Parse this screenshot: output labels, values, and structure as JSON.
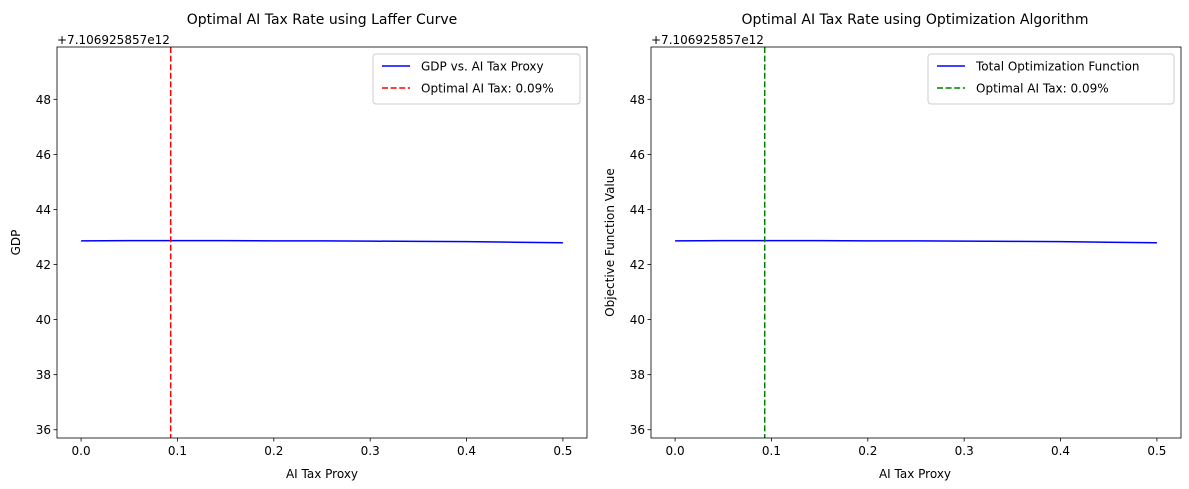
{
  "chart_data": [
    {
      "type": "line",
      "title": "Optimal AI Tax Rate using Laffer Curve",
      "xlabel": "AI Tax Proxy",
      "ylabel": "GDP",
      "y_offset_text": "+7.106925857e12",
      "xlim": [
        -0.025,
        0.525
      ],
      "ylim": [
        35.7,
        49.9
      ],
      "x_ticks": [
        0.0,
        0.1,
        0.2,
        0.3,
        0.4,
        0.5
      ],
      "x_tick_labels": [
        "0.0",
        "0.1",
        "0.2",
        "0.3",
        "0.4",
        "0.5"
      ],
      "y_ticks": [
        36,
        38,
        40,
        42,
        44,
        46,
        48
      ],
      "y_tick_labels": [
        "36",
        "38",
        "40",
        "42",
        "44",
        "46",
        "48"
      ],
      "grid": false,
      "legend_position": "top-right",
      "series": [
        {
          "name": "GDP vs. AI Tax Proxy",
          "color": "#0000ff",
          "style": "solid",
          "x": [
            0.0,
            0.05,
            0.1,
            0.15,
            0.2,
            0.25,
            0.3,
            0.35,
            0.4,
            0.45,
            0.5
          ],
          "y": [
            42.86,
            42.87,
            42.87,
            42.87,
            42.86,
            42.86,
            42.85,
            42.84,
            42.83,
            42.81,
            42.79
          ]
        }
      ],
      "vline": {
        "name": "Optimal AI Tax: 0.09%",
        "x": 0.093,
        "color": "#ff0000",
        "style": "dashed"
      }
    },
    {
      "type": "line",
      "title": "Optimal AI Tax Rate using Optimization Algorithm",
      "xlabel": "AI Tax Proxy",
      "ylabel": "Objective Function Value",
      "y_offset_text": "+7.106925857e12",
      "xlim": [
        -0.025,
        0.525
      ],
      "ylim": [
        35.7,
        49.9
      ],
      "x_ticks": [
        0.0,
        0.1,
        0.2,
        0.3,
        0.4,
        0.5
      ],
      "x_tick_labels": [
        "0.0",
        "0.1",
        "0.2",
        "0.3",
        "0.4",
        "0.5"
      ],
      "y_ticks": [
        36,
        38,
        40,
        42,
        44,
        46,
        48
      ],
      "y_tick_labels": [
        "36",
        "38",
        "40",
        "42",
        "44",
        "46",
        "48"
      ],
      "grid": false,
      "legend_position": "top-right",
      "series": [
        {
          "name": "Total Optimization Function",
          "color": "#0000ff",
          "style": "solid",
          "x": [
            0.0,
            0.05,
            0.1,
            0.15,
            0.2,
            0.25,
            0.3,
            0.35,
            0.4,
            0.45,
            0.5
          ],
          "y": [
            42.86,
            42.87,
            42.87,
            42.87,
            42.86,
            42.86,
            42.85,
            42.84,
            42.83,
            42.81,
            42.79
          ]
        }
      ],
      "vline": {
        "name": "Optimal AI Tax: 0.09%",
        "x": 0.093,
        "color": "#008000",
        "style": "dashed"
      }
    }
  ]
}
